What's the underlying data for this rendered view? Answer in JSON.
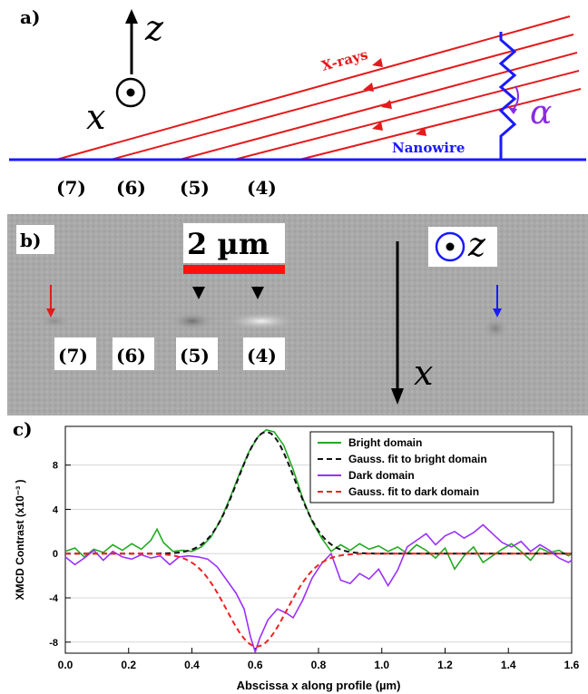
{
  "figure": {
    "panel_a": {
      "label": "a)",
      "axis_z": "z",
      "axis_x": "x",
      "xrays_label": "X-rays",
      "nanowire_label": "Nanowire",
      "alpha_label": "α",
      "positions": [
        "(7)",
        "(6)",
        "(5)",
        "(4)"
      ],
      "colors": {
        "xrays": "#e41a1c",
        "nanowire": "#1a1aff",
        "alpha": "#8a2be2"
      }
    },
    "panel_b": {
      "label": "b)",
      "scalebar_label": "2 µm",
      "axis_z": "z",
      "axis_x": "x",
      "positions": [
        "(7)",
        "(6)",
        "(5)",
        "(4)"
      ],
      "colors": {
        "scalebar": "#ff1010",
        "left_arrow": "#e41a1c",
        "right_arrow": "#1a1aff",
        "z_circle": "#1a1aff"
      }
    },
    "panel_c": {
      "label": "c)"
    }
  },
  "chart_data": {
    "type": "line",
    "xlabel": "Abscissa x along profile (µm)",
    "ylabel": "XMCD Contrast (x10⁻³ )",
    "xlim": [
      0.0,
      1.6
    ],
    "ylim": [
      -9,
      11.5
    ],
    "xticks": [
      0.0,
      0.2,
      0.4,
      0.6,
      0.8,
      1.0,
      1.2,
      1.4,
      1.6
    ],
    "yticks": [
      -8,
      -4,
      0,
      4,
      8
    ],
    "grid": true,
    "legend_position": "top-right",
    "series": [
      {
        "name": "Bright domain",
        "color": "#22aa22",
        "style": "solid",
        "points": [
          [
            0.0,
            0.2
          ],
          [
            0.03,
            0.5
          ],
          [
            0.06,
            -0.3
          ],
          [
            0.09,
            0.4
          ],
          [
            0.12,
            0.1
          ],
          [
            0.15,
            0.8
          ],
          [
            0.18,
            0.3
          ],
          [
            0.21,
            0.9
          ],
          [
            0.24,
            0.4
          ],
          [
            0.27,
            1.2
          ],
          [
            0.29,
            2.2
          ],
          [
            0.31,
            1.0
          ],
          [
            0.34,
            0.2
          ],
          [
            0.37,
            0.3
          ],
          [
            0.4,
            0.2
          ],
          [
            0.43,
            0.6
          ],
          [
            0.46,
            1.5
          ],
          [
            0.49,
            3.0
          ],
          [
            0.52,
            5.0
          ],
          [
            0.55,
            7.2
          ],
          [
            0.58,
            9.2
          ],
          [
            0.61,
            10.6
          ],
          [
            0.635,
            11.2
          ],
          [
            0.66,
            11.0
          ],
          [
            0.69,
            9.8
          ],
          [
            0.72,
            7.6
          ],
          [
            0.75,
            5.0
          ],
          [
            0.78,
            2.9
          ],
          [
            0.81,
            1.4
          ],
          [
            0.84,
            0.2
          ],
          [
            0.87,
            0.8
          ],
          [
            0.9,
            0.3
          ],
          [
            0.93,
            0.9
          ],
          [
            0.96,
            0.4
          ],
          [
            0.99,
            0.7
          ],
          [
            1.02,
            0.2
          ],
          [
            1.05,
            0.6
          ],
          [
            1.08,
            0.0
          ],
          [
            1.11,
            0.8
          ],
          [
            1.14,
            0.3
          ],
          [
            1.17,
            -0.4
          ],
          [
            1.2,
            0.5
          ],
          [
            1.23,
            -1.4
          ],
          [
            1.26,
            -0.2
          ],
          [
            1.29,
            0.6
          ],
          [
            1.32,
            -0.8
          ],
          [
            1.35,
            -0.2
          ],
          [
            1.38,
            0.4
          ],
          [
            1.41,
            0.9
          ],
          [
            1.44,
            0.2
          ],
          [
            1.47,
            -0.6
          ],
          [
            1.5,
            0.5
          ],
          [
            1.53,
            0.1
          ],
          [
            1.56,
            0.3
          ],
          [
            1.59,
            -0.2
          ],
          [
            1.6,
            0.0
          ]
        ]
      },
      {
        "name": "Gauss. fit to bright domain",
        "color": "#111111",
        "style": "dashed",
        "gaussian": {
          "amplitude": 11.0,
          "center": 0.635,
          "sigma": 0.09,
          "offset": 0.0
        }
      },
      {
        "name": "Dark domain",
        "color": "#9b30ff",
        "style": "solid",
        "points": [
          [
            0.0,
            -0.3
          ],
          [
            0.03,
            -1.0
          ],
          [
            0.06,
            -0.4
          ],
          [
            0.09,
            0.3
          ],
          [
            0.12,
            -0.6
          ],
          [
            0.15,
            0.2
          ],
          [
            0.18,
            -0.3
          ],
          [
            0.21,
            -0.5
          ],
          [
            0.24,
            -0.1
          ],
          [
            0.27,
            -0.4
          ],
          [
            0.3,
            -0.2
          ],
          [
            0.33,
            -1.0
          ],
          [
            0.36,
            -0.3
          ],
          [
            0.39,
            -0.2
          ],
          [
            0.42,
            -0.3
          ],
          [
            0.45,
            -0.5
          ],
          [
            0.48,
            -1.2
          ],
          [
            0.51,
            -2.4
          ],
          [
            0.54,
            -3.6
          ],
          [
            0.565,
            -5.0
          ],
          [
            0.585,
            -7.5
          ],
          [
            0.6,
            -8.9
          ],
          [
            0.615,
            -7.6
          ],
          [
            0.64,
            -6.0
          ],
          [
            0.67,
            -5.0
          ],
          [
            0.7,
            -5.4
          ],
          [
            0.72,
            -5.8
          ],
          [
            0.75,
            -4.2
          ],
          [
            0.78,
            -2.2
          ],
          [
            0.81,
            -0.9
          ],
          [
            0.84,
            0.0
          ],
          [
            0.87,
            -2.4
          ],
          [
            0.9,
            -2.7
          ],
          [
            0.93,
            -1.8
          ],
          [
            0.96,
            -2.3
          ],
          [
            0.99,
            -1.4
          ],
          [
            1.02,
            -2.9
          ],
          [
            1.05,
            -1.5
          ],
          [
            1.08,
            0.6
          ],
          [
            1.11,
            1.2
          ],
          [
            1.14,
            1.8
          ],
          [
            1.17,
            0.8
          ],
          [
            1.2,
            1.6
          ],
          [
            1.23,
            2.0
          ],
          [
            1.26,
            1.4
          ],
          [
            1.29,
            1.9
          ],
          [
            1.32,
            2.6
          ],
          [
            1.35,
            1.8
          ],
          [
            1.38,
            1.0
          ],
          [
            1.41,
            0.6
          ],
          [
            1.44,
            1.1
          ],
          [
            1.47,
            0.2
          ],
          [
            1.5,
            0.8
          ],
          [
            1.53,
            0.3
          ],
          [
            1.56,
            -0.4
          ],
          [
            1.59,
            -0.8
          ],
          [
            1.6,
            -0.6
          ]
        ]
      },
      {
        "name": "Gauss. fit to dark domain",
        "color": "#ee2222",
        "style": "dashed",
        "gaussian": {
          "amplitude": -8.4,
          "center": 0.605,
          "sigma": 0.095,
          "offset": 0.0
        }
      }
    ]
  }
}
